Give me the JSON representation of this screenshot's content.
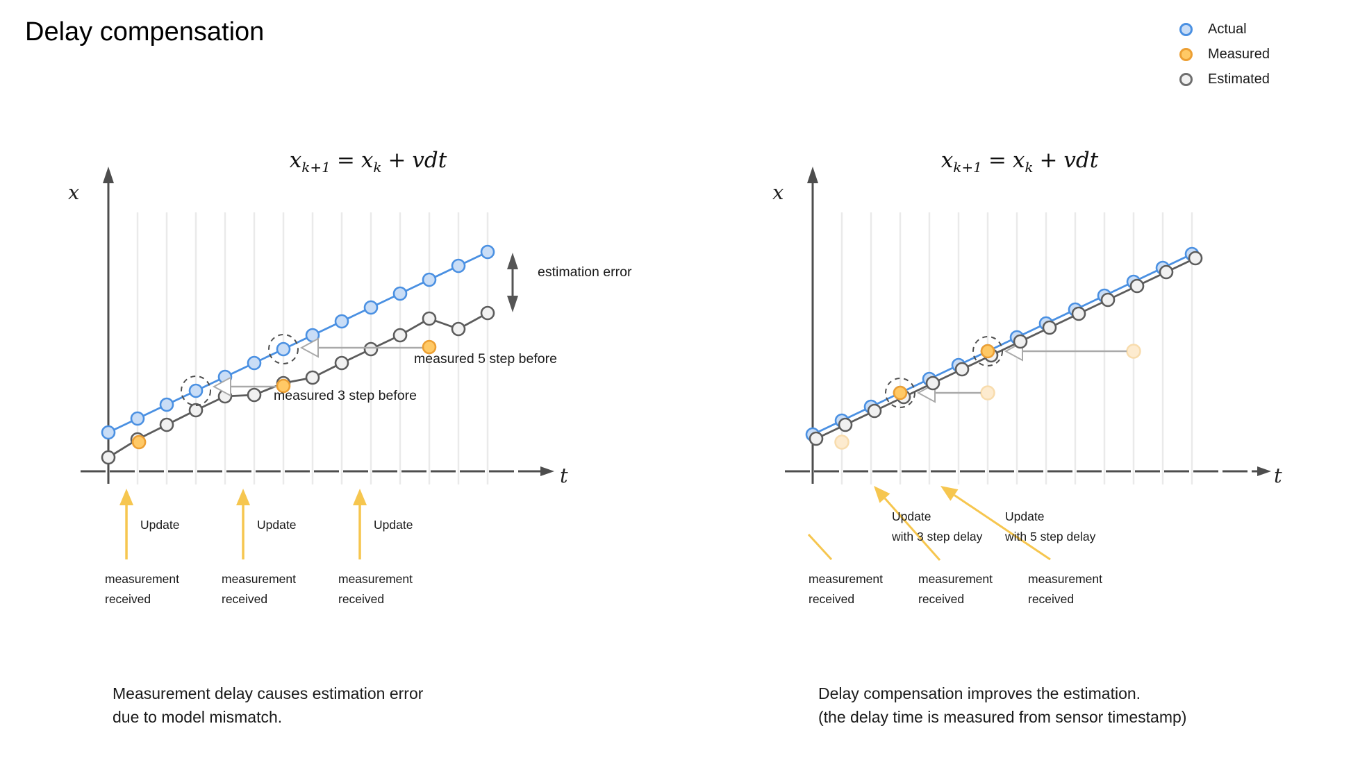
{
  "title": "Delay compensation",
  "legend": {
    "items": [
      {
        "label": "Actual",
        "stroke": "#4A90E2",
        "fill": "#C9DDF6"
      },
      {
        "label": "Measured",
        "stroke": "#EC9F33",
        "fill": "#FFC966"
      },
      {
        "label": "Estimated",
        "stroke": "#6E6E6E",
        "fill": "#F1F1F1"
      }
    ]
  },
  "formula": {
    "parts": [
      {
        "t": "x",
        "s": "v"
      },
      {
        "t": "k+1",
        "s": "sub"
      },
      {
        "t": "=",
        "s": "op"
      },
      {
        "t": "x",
        "s": "v"
      },
      {
        "t": "k",
        "s": "sub"
      },
      {
        "t": "+",
        "s": "op"
      },
      {
        "t": "vdt",
        "s": "v"
      }
    ]
  },
  "axis_labels": {
    "x": "x",
    "t": "t"
  },
  "annotations": {
    "estimation_error": "estimation error",
    "measured_5": "measured 5 step before",
    "measured_3": "measured 3 step before",
    "update": "Update",
    "update_3_lines": [
      "Update",
      "with 3 step delay"
    ],
    "update_5_lines": [
      "Update",
      "with 5 step delay"
    ],
    "measurement_received": [
      "measurement",
      "received"
    ]
  },
  "captions": {
    "left": [
      "Measurement delay causes estimation error",
      "due to model mismatch."
    ],
    "right": [
      "Delay compensation improves the estimation.",
      "(the delay time is measured from sensor timestamp)"
    ]
  },
  "colors": {
    "axis": "#4D4D4D",
    "grid": "#EAEAEA",
    "actual_stroke": "#4A90E2",
    "actual_fill": "#C9DDF6",
    "measured_stroke": "#EC9F33",
    "measured_fill": "#FFC966",
    "ghost_stroke": "#F8DCAD",
    "ghost_fill": "#FDEBCF",
    "estimated_stroke": "#5C5C5C",
    "estimated_fill": "#F1F1F1",
    "annotation_arrow": "#A9A9A9",
    "dashed_circle": "#4F4F4F",
    "error_arrow": "#555555",
    "update_arrow": "#F6C64F",
    "text": "#1A1A1A"
  },
  "chart_data": [
    {
      "name": "left",
      "type": "line",
      "title": "x_{k+1} = x_k + vdt",
      "xlabel": "t",
      "ylabel": "x",
      "axes": "unlabeled qualitative axes, vertical gridlines only",
      "t": [
        0,
        1,
        2,
        3,
        4,
        5,
        6,
        7,
        8,
        9,
        10,
        11,
        12,
        13
      ],
      "series": [
        {
          "name": "Actual",
          "values": [
            0,
            1,
            2,
            3,
            4,
            5,
            6,
            7,
            8,
            9,
            10,
            11,
            12,
            13
          ]
        },
        {
          "name": "Estimated",
          "values": [
            -1.8,
            -0.5,
            0.55,
            1.6,
            2.6,
            2.7,
            3.55,
            3.95,
            5.0,
            6.0,
            7.0,
            8.2,
            7.45,
            8.6
          ]
        }
      ],
      "measured_points": [
        {
          "t": 1.05,
          "v": -0.7
        },
        {
          "t": 6.0,
          "v": 3.35
        },
        {
          "t": 11.0,
          "v": 6.15
        }
      ],
      "circled_actual_steps": [
        3,
        6
      ],
      "delay_arrows": [
        {
          "from_t": 6.0,
          "from_v": 3.35,
          "to_step": 3
        },
        {
          "from_t": 11.0,
          "from_v": 6.15,
          "to_step": 6
        }
      ],
      "update_arrow_times": [
        0.62,
        4.62,
        8.62
      ],
      "estimation_error_span": {
        "t": 13,
        "from_v_actual": 13,
        "to_v_estimated": 8.6
      }
    },
    {
      "name": "right",
      "type": "line",
      "title": "x_{k+1} = x_k + vdt",
      "xlabel": "t",
      "ylabel": "x",
      "axes": "unlabeled qualitative axes, vertical gridlines only",
      "t": [
        0,
        1,
        2,
        3,
        4,
        5,
        6,
        7,
        8,
        9,
        10,
        11,
        12,
        13
      ],
      "series": [
        {
          "name": "Actual",
          "values": [
            0,
            1,
            2,
            3,
            4,
            5,
            6,
            7,
            8,
            9,
            10,
            11,
            12,
            13
          ]
        },
        {
          "name": "Estimated",
          "values": [
            -0.3,
            0.7,
            1.7,
            2.7,
            3.7,
            4.7,
            5.7,
            6.7,
            7.7,
            8.7,
            9.7,
            10.7,
            11.7,
            12.7
          ]
        }
      ],
      "compensated_measured_points": [
        {
          "t": 3,
          "v": 3
        },
        {
          "t": 6,
          "v": 6
        }
      ],
      "ghost_measured_points": [
        {
          "t": 1.0,
          "v": -0.55
        },
        {
          "t": 6.0,
          "v": 3.0
        },
        {
          "t": 11.0,
          "v": 6.0
        }
      ],
      "delay_arrows": [
        {
          "from_t": 6.0,
          "from_v": 3.0,
          "to_step": 3
        },
        {
          "from_t": 11.0,
          "from_v": 6.0,
          "to_step": 6
        }
      ],
      "circled_actual_steps": [
        3,
        6
      ]
    }
  ]
}
